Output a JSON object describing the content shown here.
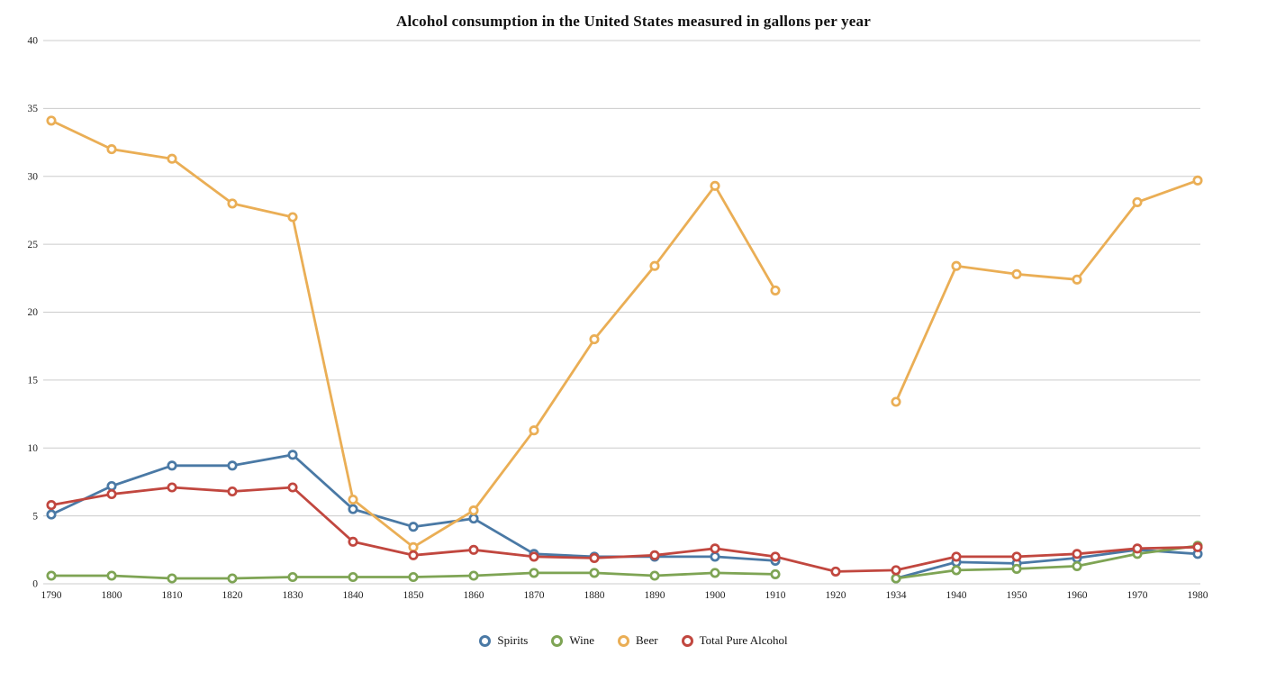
{
  "chart_data": {
    "type": "line",
    "title": "Alcohol consumption in the United States measured in gallons per year",
    "xlabel": "",
    "ylabel": "",
    "ylim": [
      0,
      40
    ],
    "yticks": [
      0,
      5,
      10,
      15,
      20,
      25,
      30,
      35,
      40
    ],
    "grid": "horizontal",
    "legend_position": "bottom-center",
    "marker_style": "open-circle",
    "categories": [
      "1790",
      "1800",
      "1810",
      "1820",
      "1830",
      "1840",
      "1850",
      "1860",
      "1870",
      "1880",
      "1890",
      "1900",
      "1910",
      "1920",
      "1934",
      "1940",
      "1950",
      "1960",
      "1970",
      "1980"
    ],
    "series": [
      {
        "name": "Spirits",
        "color": "#4A79A5",
        "values": [
          5.1,
          7.2,
          8.7,
          8.7,
          9.5,
          5.5,
          4.2,
          4.8,
          2.2,
          2.0,
          2.0,
          2.0,
          1.7,
          null,
          0.4,
          1.6,
          1.5,
          1.9,
          2.5,
          2.2
        ]
      },
      {
        "name": "Wine",
        "color": "#7EA454",
        "values": [
          0.6,
          0.6,
          0.4,
          0.4,
          0.5,
          0.5,
          0.5,
          0.6,
          0.8,
          0.8,
          0.6,
          0.8,
          0.7,
          null,
          0.4,
          1.0,
          1.1,
          1.3,
          2.2,
          2.8
        ]
      },
      {
        "name": "Beer",
        "color": "#EAAE55",
        "values": [
          34.1,
          32.0,
          31.3,
          28.0,
          27.0,
          6.2,
          2.7,
          5.4,
          11.3,
          18.0,
          23.4,
          29.3,
          21.6,
          null,
          13.4,
          23.4,
          22.8,
          22.4,
          28.1,
          29.7
        ]
      },
      {
        "name": "Total Pure Alcohol",
        "color": "#C1473F",
        "values": [
          5.8,
          6.6,
          7.1,
          6.8,
          7.1,
          3.1,
          2.1,
          2.5,
          2.0,
          1.9,
          2.1,
          2.6,
          2.0,
          0.9,
          1.0,
          2.0,
          2.0,
          2.2,
          2.6,
          2.7
        ]
      }
    ]
  }
}
